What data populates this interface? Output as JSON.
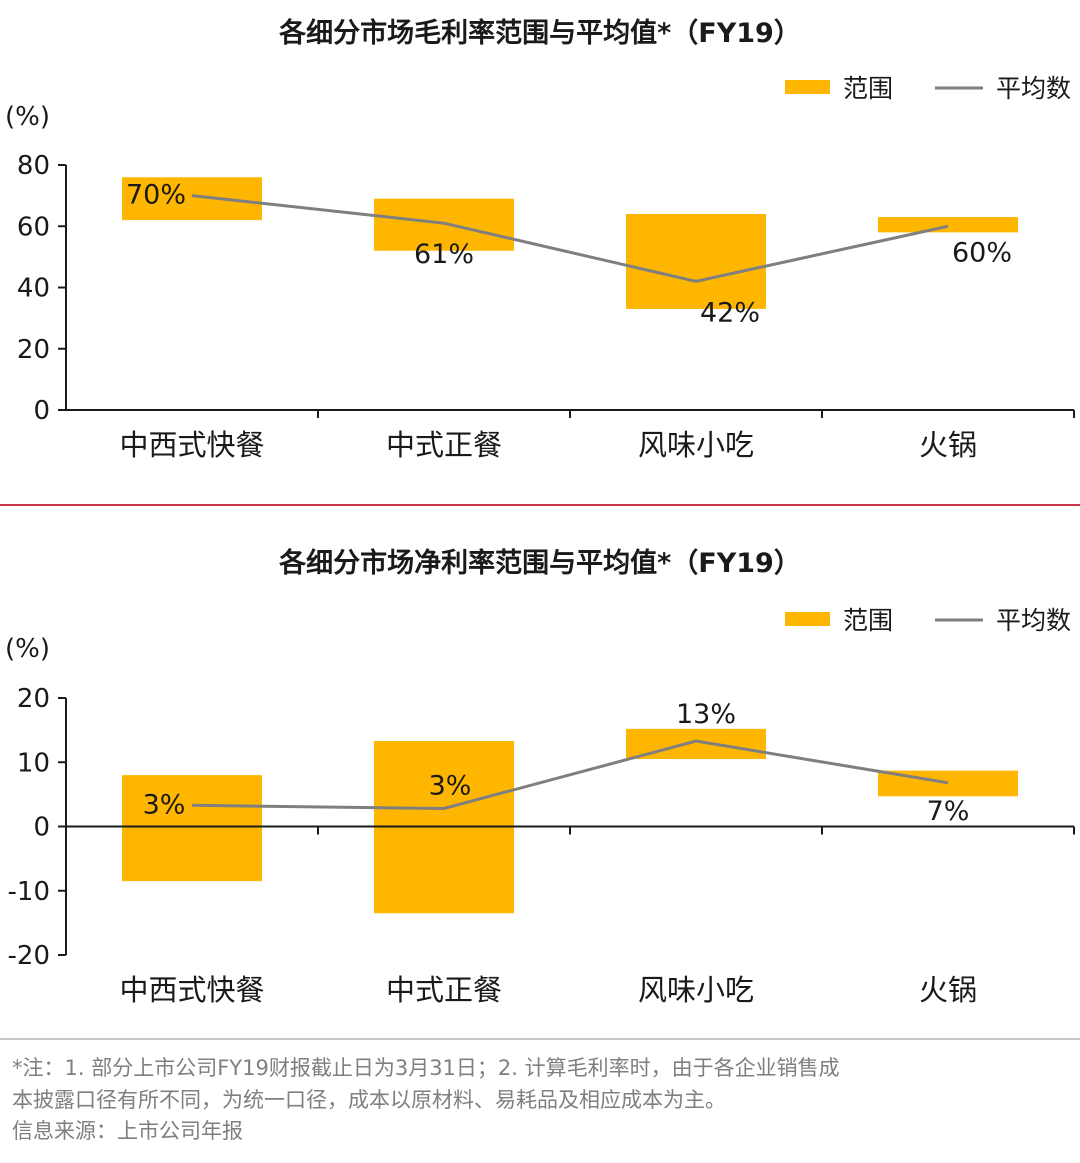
{
  "colors": {
    "range_bar": "#FFB600",
    "average_line": "#7f7f7f",
    "axis": "#1a1a1a",
    "divider": "#c7364b"
  },
  "chart_data": [
    {
      "type": "bar",
      "title": "各细分市场毛利率范围与平均值*（FY19）",
      "ylabel": "(%)",
      "legend": {
        "range": "范围",
        "average": "平均数"
      },
      "categories": [
        "中西式快餐",
        "中式正餐",
        "风味小吃",
        "火锅"
      ],
      "ranges": [
        [
          62,
          76
        ],
        [
          52,
          69
        ],
        [
          33,
          64
        ],
        [
          58,
          63
        ]
      ],
      "average": [
        70,
        61,
        42,
        60
      ],
      "average_labels": [
        "70%",
        "61%",
        "42%",
        "60%"
      ],
      "ylim": [
        0,
        80
      ],
      "yticks": [
        0,
        20,
        40,
        60,
        80
      ],
      "ytick_labels": [
        "0",
        "20",
        "40",
        "60",
        "80"
      ]
    },
    {
      "type": "bar",
      "title": "各细分市场净利率范围与平均值*（FY19）",
      "ylabel": "(%)",
      "legend": {
        "range": "范围",
        "average": "平均数"
      },
      "categories": [
        "中西式快餐",
        "中式正餐",
        "风味小吃",
        "火锅"
      ],
      "ranges": [
        [
          -8.5,
          8
        ],
        [
          -13.5,
          13.3
        ],
        [
          10.5,
          15.2
        ],
        [
          4.7,
          8.7
        ]
      ],
      "average": [
        3.3,
        2.8,
        13.3,
        6.8
      ],
      "average_labels": [
        "3%",
        "3%",
        "13%",
        "7%"
      ],
      "ylim": [
        -20,
        20
      ],
      "yticks": [
        -20,
        -10,
        0,
        10,
        20
      ],
      "ytick_labels": [
        "-20",
        "-10",
        "0",
        "10",
        "20"
      ]
    }
  ],
  "footnote": {
    "line1": "*注：1. 部分上市公司FY19财报截止日为3月31日；2. 计算毛利率时，由于各企业销售成",
    "line2": "本披露口径有所不同，为统一口径，成本以原材料、易耗品及相应成本为主。",
    "source": "信息来源：上市公司年报"
  }
}
